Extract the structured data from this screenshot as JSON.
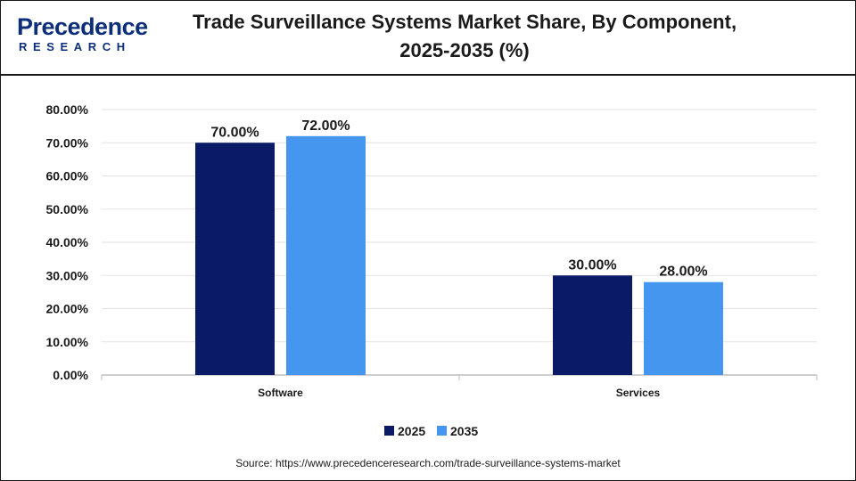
{
  "header": {
    "logo_top": "Precedence",
    "logo_bottom": "RESEARCH",
    "title_line1": "Trade Surveillance Systems Market Share, By Component,",
    "title_line2": "2025-2035 (%)"
  },
  "colors": {
    "series_2025": "#0b1a66",
    "series_2035": "#4596ee",
    "brand": "#0d2f7a"
  },
  "source_text": "Source: https://www.precedenceresearch.com/trade-surveillance-systems-market",
  "chart_data": {
    "type": "bar",
    "title": "Trade Surveillance Systems Market Share, By Component, 2025-2035 (%)",
    "categories": [
      "Software",
      "Services"
    ],
    "series": [
      {
        "name": "2025",
        "values": [
          70.0,
          30.0
        ],
        "labels": [
          "70.00%",
          "30.00%"
        ]
      },
      {
        "name": "2035",
        "values": [
          72.0,
          28.0
        ],
        "labels": [
          "72.00%",
          "28.00%"
        ]
      }
    ],
    "ylim": [
      0,
      80
    ],
    "yticks": [
      0,
      10,
      20,
      30,
      40,
      50,
      60,
      70,
      80
    ],
    "ytick_labels": [
      "0.00%",
      "10.00%",
      "20.00%",
      "30.00%",
      "40.00%",
      "50.00%",
      "60.00%",
      "70.00%",
      "80.00%"
    ],
    "xlabel": "",
    "ylabel": "",
    "grid": true,
    "legend_position": "bottom"
  }
}
